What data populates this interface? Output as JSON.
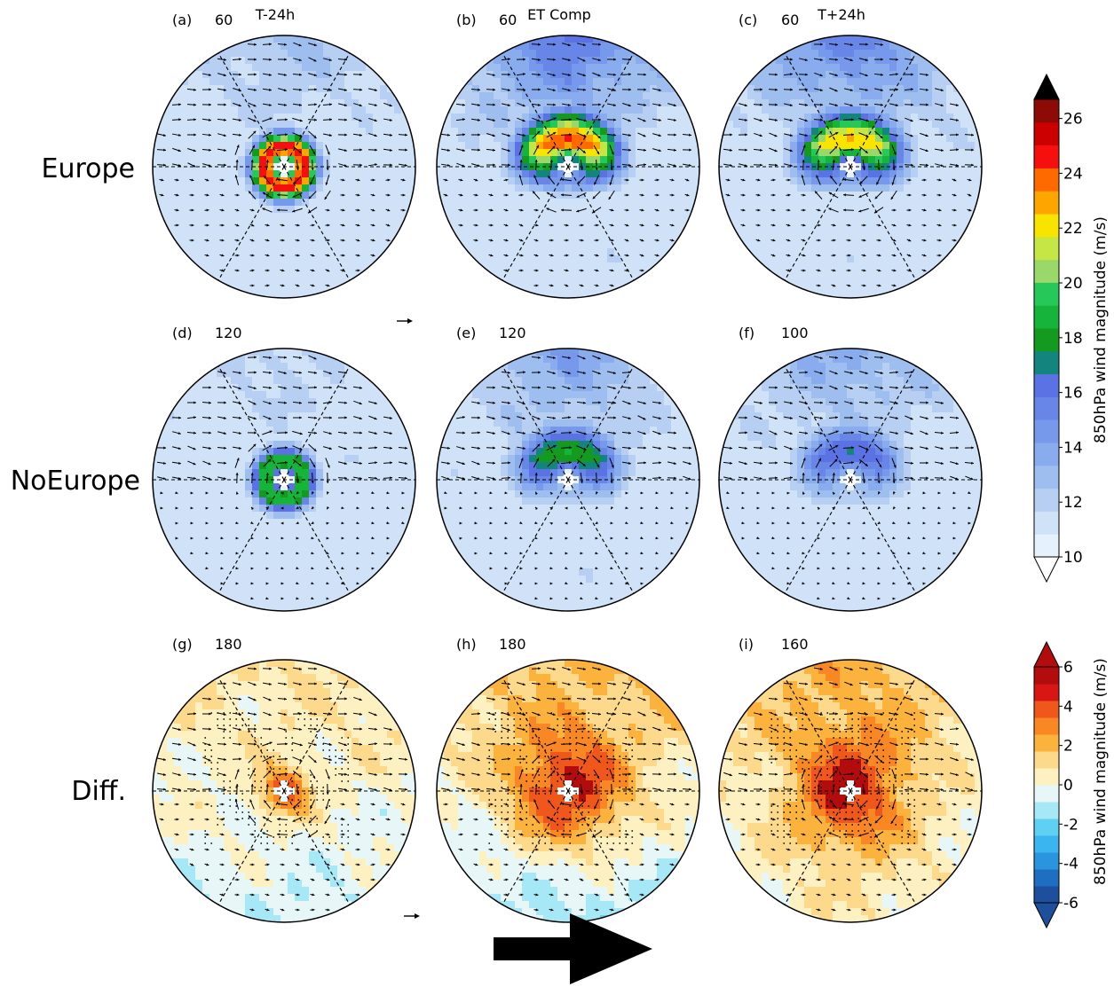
{
  "row_labels": [
    "Europe",
    "NoEurope",
    "Diff."
  ],
  "panels": [
    {
      "id": "a",
      "letter": "(a)",
      "max": "60",
      "title": "T-24h",
      "row": 0,
      "col": 0,
      "field": "wind",
      "peak": 27,
      "ring": true,
      "north": 0.35,
      "south": 0.1
    },
    {
      "id": "b",
      "letter": "(b)",
      "max": "60",
      "title": "ET Comp",
      "row": 0,
      "col": 1,
      "field": "wind",
      "peak": 26,
      "ring": false,
      "north": 0.9,
      "south": 0.15
    },
    {
      "id": "c",
      "letter": "(c)",
      "max": "60",
      "title": "T+24h",
      "row": 0,
      "col": 2,
      "field": "wind",
      "peak": 24,
      "ring": false,
      "north": 0.8,
      "south": 0.12
    },
    {
      "id": "d",
      "letter": "(d)",
      "max": "120",
      "title": "",
      "row": 1,
      "col": 0,
      "field": "wind",
      "peak": 20,
      "ring": true,
      "north": 0.2,
      "south": 0.05
    },
    {
      "id": "e",
      "letter": "(e)",
      "max": "120",
      "title": "",
      "row": 1,
      "col": 1,
      "field": "wind",
      "peak": 19,
      "ring": false,
      "north": 0.55,
      "south": 0.15
    },
    {
      "id": "f",
      "letter": "(f)",
      "max": "100",
      "title": "",
      "row": 1,
      "col": 2,
      "field": "wind",
      "peak": 17,
      "ring": false,
      "north": 0.5,
      "south": 0.05
    },
    {
      "id": "g",
      "letter": "(g)",
      "max": "180",
      "title": "",
      "row": 2,
      "col": 0,
      "field": "diff",
      "peak": 5.5,
      "ring": true,
      "north": 0.4,
      "south": -0.5
    },
    {
      "id": "h",
      "letter": "(h)",
      "max": "180",
      "title": "",
      "row": 2,
      "col": 1,
      "field": "diff",
      "peak": 6,
      "ring": false,
      "north": 0.9,
      "south": -0.8
    },
    {
      "id": "i",
      "letter": "(i)",
      "max": "160",
      "title": "",
      "row": 2,
      "col": 2,
      "field": "diff",
      "peak": 6,
      "ring": false,
      "north": 1.0,
      "south": 0.2
    }
  ],
  "wind_colorbar": {
    "title": "850hPa wind magnitude (m/s)",
    "ticks": [
      "10",
      "12",
      "14",
      "16",
      "18",
      "20",
      "22",
      "24",
      "26"
    ],
    "levels": [
      10,
      11,
      12,
      13,
      14,
      15,
      16,
      17,
      18,
      19,
      20,
      21,
      22,
      23,
      24,
      25,
      26,
      27
    ],
    "colors": [
      "#e6f2fb",
      "#cfe2f7",
      "#b7cff3",
      "#9fbef0",
      "#89acee",
      "#7699eb",
      "#6786e8",
      "#5a72e4",
      "#13857e",
      "#139a1f",
      "#16b43a",
      "#27c85a",
      "#9ad86a",
      "#c6e646",
      "#f9e400",
      "#ffa500",
      "#ff6a00",
      "#f50f0f",
      "#cd0000",
      "#8e0a05"
    ],
    "over_color": "#000000",
    "under_color": "#ffffff"
  },
  "diff_colorbar": {
    "title": "850hPa wind magnitude (m/s)",
    "ticks": [
      "-6",
      "-4",
      "-2",
      "0",
      "2",
      "4",
      "6"
    ],
    "levels": [
      -6,
      -5,
      -4,
      -3,
      -2,
      -1,
      0,
      1,
      2,
      3,
      4,
      5,
      6
    ],
    "colors": [
      "#1d4f9c",
      "#1e6fc2",
      "#2a94df",
      "#3ab5ef",
      "#5fd0f2",
      "#a6e8f5",
      "#e7f7f8",
      "#fdf0c1",
      "#fdd98b",
      "#fbb33e",
      "#f98724",
      "#f0571a",
      "#d91616",
      "#b30c0c"
    ]
  },
  "reference_arrows": [
    {
      "label": ""
    },
    {
      "label": ""
    }
  ],
  "colors": {
    "arrow": "#000000",
    "outline": "#000000",
    "stipple": "#000000"
  }
}
